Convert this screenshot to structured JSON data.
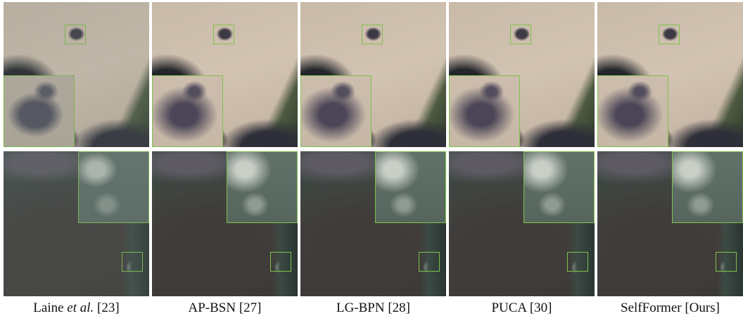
{
  "captions": [
    {
      "before": "Laine",
      "italic": "et al.",
      "after": "[23]"
    },
    {
      "before": "AP-BSN [27]"
    },
    {
      "before": "LG-BPN [28]"
    },
    {
      "before": "PUCA [30]"
    },
    {
      "before": "SelfFormer [Ours]"
    }
  ]
}
